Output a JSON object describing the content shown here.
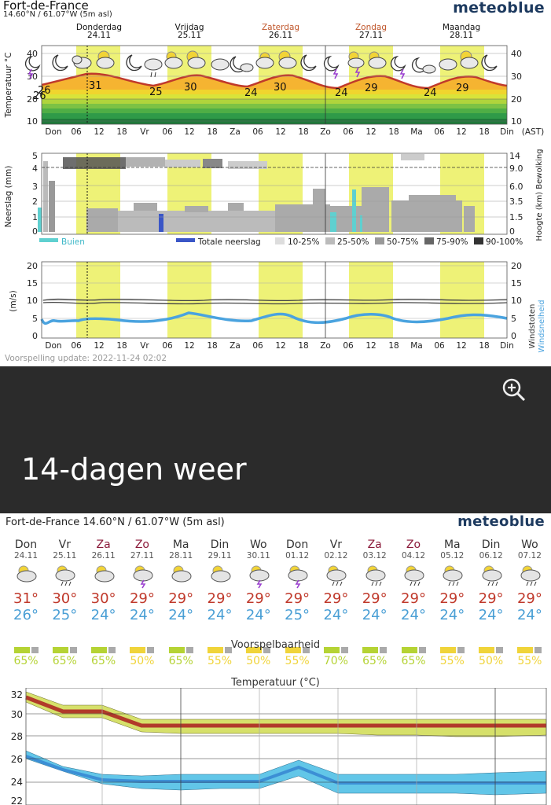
{
  "header": {
    "location": "Fort-de-France",
    "coords": "14.60°N / 61.07°W (5m asl)",
    "brand": "meteoblue"
  },
  "day_headers": [
    {
      "name": "Donderdag",
      "date": "24.11",
      "weekend": false
    },
    {
      "name": "Vrijdag",
      "date": "25.11",
      "weekend": false
    },
    {
      "name": "Zaterdag",
      "date": "26.11",
      "weekend": true
    },
    {
      "name": "Zondag",
      "date": "27.11",
      "weekend": true
    },
    {
      "name": "Maandag",
      "date": "28.11",
      "weekend": false
    }
  ],
  "temp_chart": {
    "ylabel": "Temperatuur °C",
    "yticks": [
      "40",
      "30",
      "20",
      "10"
    ],
    "right_yticks": [
      "40",
      "30",
      "20",
      "10"
    ],
    "labels": [
      "26",
      "26",
      "31",
      "25",
      "30",
      "24",
      "30",
      "24",
      "29",
      "24",
      "29"
    ]
  },
  "x_axis": {
    "labels": [
      "Don",
      "06",
      "12",
      "18",
      "Vr",
      "06",
      "12",
      "18",
      "Za",
      "06",
      "12",
      "18",
      "Zo",
      "06",
      "12",
      "18",
      "Ma",
      "06",
      "12",
      "18",
      "Din"
    ],
    "tz": "(AST)"
  },
  "precip_chart": {
    "ylabel": "Neerslag (mm)",
    "yticks": [
      "5",
      "4",
      "3",
      "2",
      "1",
      "0"
    ],
    "right_ylabel": "Hoogte (km) Bewolking",
    "right_yticks": [
      "14",
      "9.0",
      "6.0",
      "3.5",
      "1.5",
      "0"
    ],
    "legend": {
      "showers": "Buien",
      "total": "Totale neerslag",
      "c1": "10-25%",
      "c2": "25-50%",
      "c3": "50-75%",
      "c4": "75-90%",
      "c5": "90-100%"
    }
  },
  "wind_chart": {
    "ylabel": "(m/s)",
    "yticks": [
      "20",
      "15",
      "10",
      "5",
      "0"
    ],
    "right_yticks": [
      "20",
      "15",
      "10",
      "5",
      "0"
    ],
    "right_label_gust": "Windstoten",
    "right_label_speed": "Windsnelheid"
  },
  "update_text": "Voorspelling update: 2022-11-24 02:02",
  "section_title": "14-dagen weer",
  "forecast14": {
    "location_line": "Fort-de-France  14.60°N / 61.07°W (5m asl)",
    "brand": "meteoblue",
    "days": [
      {
        "name": "Don",
        "date": "24.11",
        "max": "31°",
        "min": "26°",
        "pct": "65%",
        "icon": "sun-cloud",
        "weekend": false,
        "pred": "green"
      },
      {
        "name": "Vr",
        "date": "25.11",
        "max": "30°",
        "min": "25°",
        "pct": "65%",
        "icon": "sun-cloud-rain",
        "weekend": false,
        "pred": "green"
      },
      {
        "name": "Za",
        "date": "26.11",
        "max": "30°",
        "min": "24°",
        "pct": "65%",
        "icon": "sun-cloud",
        "weekend": true,
        "pred": "green"
      },
      {
        "name": "Zo",
        "date": "27.11",
        "max": "29°",
        "min": "24°",
        "pct": "50%",
        "icon": "cloud-thunder",
        "weekend": true,
        "pred": "yellow"
      },
      {
        "name": "Ma",
        "date": "28.11",
        "max": "29°",
        "min": "24°",
        "pct": "65%",
        "icon": "sun-cloud",
        "weekend": false,
        "pred": "green"
      },
      {
        "name": "Din",
        "date": "29.11",
        "max": "29°",
        "min": "24°",
        "pct": "55%",
        "icon": "sun-cloud",
        "weekend": false,
        "pred": "yellow"
      },
      {
        "name": "Wo",
        "date": "30.11",
        "max": "29°",
        "min": "24°",
        "pct": "50%",
        "icon": "cloud-thunder",
        "weekend": false,
        "pred": "yellow"
      },
      {
        "name": "Don",
        "date": "01.12",
        "max": "29°",
        "min": "25°",
        "pct": "55%",
        "icon": "cloud-thunder",
        "weekend": false,
        "pred": "yellow"
      },
      {
        "name": "Vr",
        "date": "02.12",
        "max": "29°",
        "min": "24°",
        "pct": "70%",
        "icon": "sun-cloud-rain",
        "weekend": false,
        "pred": "green"
      },
      {
        "name": "Za",
        "date": "03.12",
        "max": "29°",
        "min": "24°",
        "pct": "65%",
        "icon": "sun-cloud-rain",
        "weekend": true,
        "pred": "green"
      },
      {
        "name": "Zo",
        "date": "04.12",
        "max": "29°",
        "min": "24°",
        "pct": "65%",
        "icon": "sun-cloud-rain",
        "weekend": true,
        "pred": "green"
      },
      {
        "name": "Ma",
        "date": "05.12",
        "max": "29°",
        "min": "24°",
        "pct": "55%",
        "icon": "sun-cloud-rain",
        "weekend": false,
        "pred": "yellow"
      },
      {
        "name": "Din",
        "date": "06.12",
        "max": "29°",
        "min": "24°",
        "pct": "50%",
        "icon": "sun-cloud-rain",
        "weekend": false,
        "pred": "yellow"
      },
      {
        "name": "Wo",
        "date": "07.12",
        "max": "29°",
        "min": "24°",
        "pct": "55%",
        "icon": "sun-cloud-rain",
        "weekend": false,
        "pred": "yellow"
      }
    ],
    "pred_title": "Voorspelbaarheid",
    "temp_title": "Temperatuur (°C)",
    "temp_yticks": [
      "32",
      "30",
      "28",
      "26",
      "24",
      "22"
    ]
  },
  "colors": {
    "accent_blue": "#4aa3df",
    "max_red": "#c0392b",
    "band_yellow": "#eef277",
    "pred_green": "#b5d334",
    "pred_yellow": "#f0d43a"
  }
}
